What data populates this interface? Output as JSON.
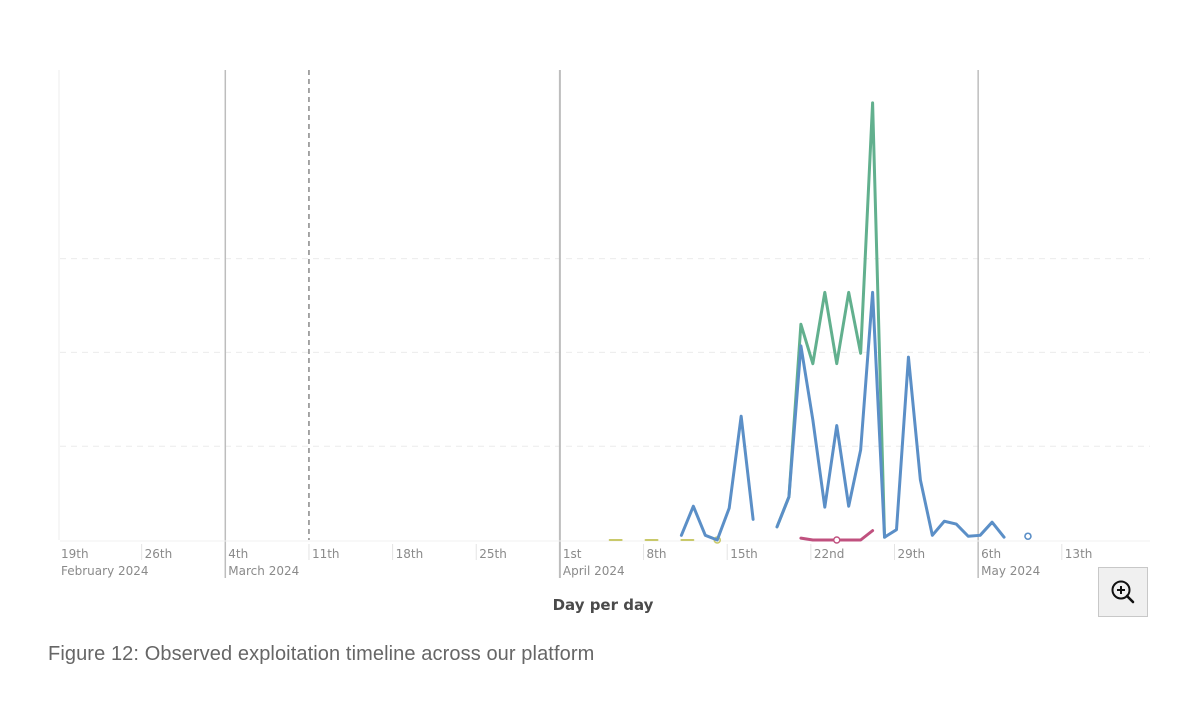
{
  "caption": "Figure 12: Observed exploitation timeline across our platform",
  "zoom_button": {
    "icon": "zoom-in-icon"
  },
  "chart_data": {
    "type": "line",
    "title": "",
    "xlabel": "Day per day",
    "ylabel": "",
    "grid": true,
    "legend": null,
    "x_ticks": [
      {
        "label": "19th",
        "sub": "February 2024",
        "date": "2024-02-19"
      },
      {
        "label": "26th",
        "sub": "",
        "date": "2024-02-26"
      },
      {
        "label": "4th",
        "sub": "March 2024",
        "date": "2024-03-04"
      },
      {
        "label": "11th",
        "sub": "",
        "date": "2024-03-11"
      },
      {
        "label": "18th",
        "sub": "",
        "date": "2024-03-18"
      },
      {
        "label": "25th",
        "sub": "",
        "date": "2024-03-25"
      },
      {
        "label": "1st",
        "sub": "April 2024",
        "date": "2024-04-01"
      },
      {
        "label": "8th",
        "sub": "",
        "date": "2024-04-08"
      },
      {
        "label": "15th",
        "sub": "",
        "date": "2024-04-15"
      },
      {
        "label": "22nd",
        "sub": "",
        "date": "2024-04-22"
      },
      {
        "label": "29th",
        "sub": "",
        "date": "2024-04-29"
      },
      {
        "label": "6th",
        "sub": "May 2024",
        "date": "2024-05-06"
      },
      {
        "label": "13th",
        "sub": "",
        "date": "2024-05-13"
      }
    ],
    "annotations": [
      {
        "type": "vline-dashed",
        "date": "2024-03-11"
      }
    ],
    "ylim": [
      0,
      50
    ],
    "y_gridlines": [
      10,
      20,
      30
    ],
    "series": [
      {
        "name": "series-blue",
        "color": "#5b8fc7",
        "points": [
          [
            "2024-04-11",
            0.5
          ],
          [
            "2024-04-12",
            3.6
          ],
          [
            "2024-04-13",
            0.5
          ],
          [
            "2024-04-14",
            0
          ],
          [
            "2024-04-15",
            3.4
          ],
          [
            "2024-04-16",
            13.2
          ],
          [
            "2024-04-17",
            2.2
          ],
          [
            "2024-04-18",
            null
          ],
          [
            "2024-04-19",
            1.4
          ],
          [
            "2024-04-20",
            4.6
          ],
          [
            "2024-04-21",
            20.7
          ],
          [
            "2024-04-22",
            12.8
          ],
          [
            "2024-04-23",
            3.5
          ],
          [
            "2024-04-24",
            12.2
          ],
          [
            "2024-04-25",
            3.6
          ],
          [
            "2024-04-26",
            9.6
          ],
          [
            "2024-04-27",
            26.4
          ],
          [
            "2024-04-28",
            0.3
          ],
          [
            "2024-04-29",
            1.1
          ],
          [
            "2024-04-30",
            19.5
          ],
          [
            "2024-05-01",
            6.4
          ],
          [
            "2024-05-02",
            0.5
          ],
          [
            "2024-05-03",
            2.0
          ],
          [
            "2024-05-04",
            1.7
          ],
          [
            "2024-05-05",
            0.4
          ],
          [
            "2024-05-06",
            0.5
          ],
          [
            "2024-05-07",
            1.9
          ],
          [
            "2024-05-08",
            0.3
          ],
          [
            "2024-05-10",
            0.4
          ]
        ]
      },
      {
        "name": "series-green",
        "color": "#62b08e",
        "points": [
          [
            "2024-04-19",
            1.4
          ],
          [
            "2024-04-20",
            4.6
          ],
          [
            "2024-04-21",
            23.0
          ],
          [
            "2024-04-22",
            18.8
          ],
          [
            "2024-04-23",
            26.4
          ],
          [
            "2024-04-24",
            18.8
          ],
          [
            "2024-04-25",
            26.4
          ],
          [
            "2024-04-26",
            19.9
          ],
          [
            "2024-04-27",
            46.6
          ],
          [
            "2024-04-28",
            0.3
          ]
        ]
      },
      {
        "name": "series-magenta",
        "color": "#c0517f",
        "points": [
          [
            "2024-04-21",
            0.2
          ],
          [
            "2024-04-22",
            0
          ],
          [
            "2024-04-23",
            0
          ],
          [
            "2024-04-24",
            0
          ],
          [
            "2024-04-25",
            0
          ],
          [
            "2024-04-26",
            0
          ],
          [
            "2024-04-27",
            1.0
          ]
        ]
      },
      {
        "name": "series-yellow",
        "color": "#c9c96a",
        "points": [
          [
            "2024-04-05",
            0
          ],
          [
            "2024-04-06",
            0
          ],
          [
            "2024-04-08",
            0
          ],
          [
            "2024-04-09",
            0
          ],
          [
            "2024-04-11",
            0
          ],
          [
            "2024-04-12",
            0
          ],
          [
            "2024-04-14",
            0
          ]
        ]
      }
    ]
  }
}
